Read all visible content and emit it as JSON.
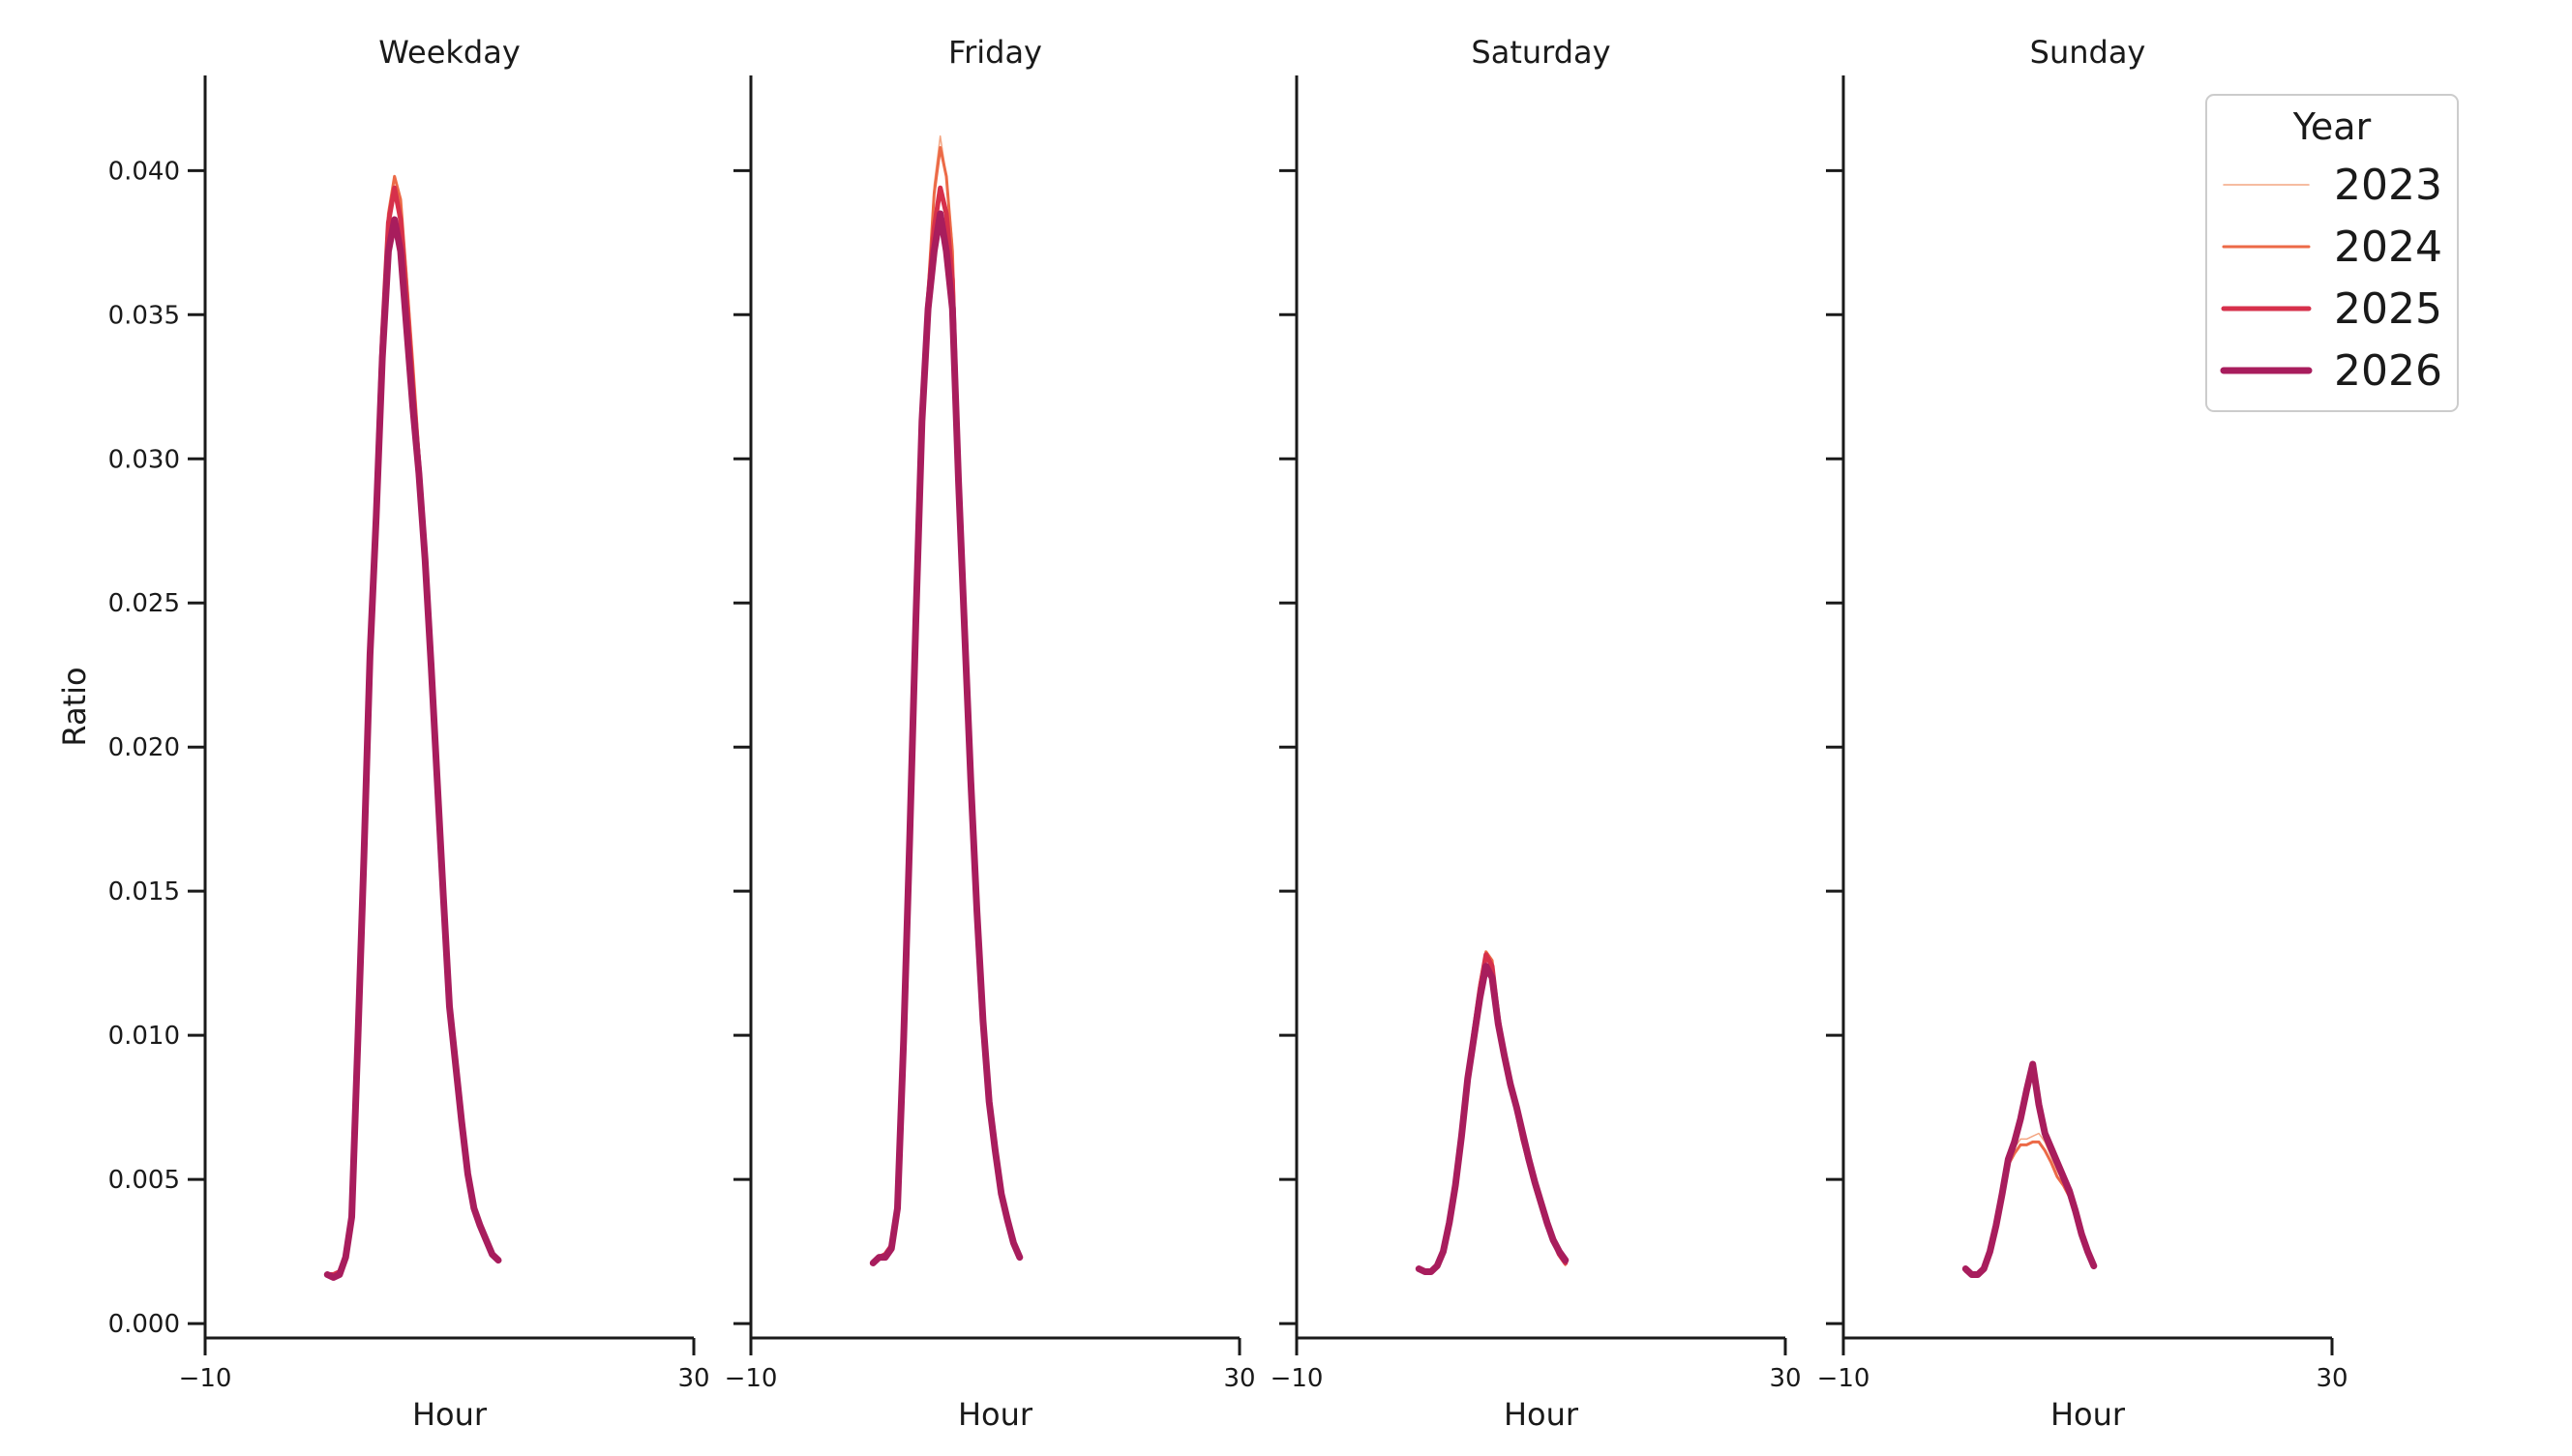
{
  "chart_data": {
    "type": "line",
    "ylabel": "Ratio",
    "xlabel": "Hour",
    "xlim": [
      -10,
      30
    ],
    "ylim": [
      -0.0005,
      0.0433
    ],
    "x_ticks": [
      {
        "value": -10,
        "label": "−10"
      },
      {
        "value": 30,
        "label": "30"
      }
    ],
    "y_ticks": [
      {
        "value": 0.0,
        "label": "0.000"
      },
      {
        "value": 0.005,
        "label": "0.005"
      },
      {
        "value": 0.01,
        "label": "0.010"
      },
      {
        "value": 0.015,
        "label": "0.015"
      },
      {
        "value": 0.02,
        "label": "0.020"
      },
      {
        "value": 0.025,
        "label": "0.025"
      },
      {
        "value": 0.03,
        "label": "0.030"
      },
      {
        "value": 0.035,
        "label": "0.035"
      },
      {
        "value": 0.04,
        "label": "0.040"
      }
    ],
    "grid": false,
    "legend": {
      "title": "Year",
      "placement": "top-right"
    },
    "series_styles": [
      {
        "name": "2023",
        "color": "#f4a582",
        "width": 1.5
      },
      {
        "name": "2024",
        "color": "#ec6a47",
        "width": 3
      },
      {
        "name": "2025",
        "color": "#d6304b",
        "width": 5
      },
      {
        "name": "2026",
        "color": "#a81d5d",
        "width": 7
      }
    ],
    "x": [
      0,
      0.5,
      1,
      1.5,
      2,
      2.5,
      3,
      3.5,
      4,
      4.5,
      5,
      5.5,
      6,
      6.5,
      7,
      7.5,
      8,
      8.5,
      9,
      9.5,
      10,
      10.5,
      11,
      11.5,
      12,
      12.5,
      13,
      13.5,
      14,
      14.5,
      15,
      15.5,
      16,
      16.5,
      17,
      17.5,
      18,
      18.5,
      19,
      19.5,
      20,
      20.5,
      21,
      21.5,
      22,
      22.5,
      23
    ],
    "panels": [
      {
        "title": "Weekday",
        "series": [
          {
            "name": "2023",
            "values": [
              0.0017,
              0.0017,
              0.0018,
              0.0023,
              0.0038,
              0.01,
              0.0165,
              0.0235,
              0.0285,
              0.0345,
              0.0385,
              0.0398,
              0.039,
              0.0365,
              0.0335,
              0.0305,
              0.0275,
              0.0235,
              0.0195,
              0.0155,
              0.0115,
              0.0095,
              0.0075,
              0.0055,
              0.0042,
              0.0035,
              0.003,
              0.0025,
              0.0023,
              null,
              null,
              null,
              null,
              null,
              null,
              null,
              null,
              null,
              null,
              null,
              null,
              null,
              null,
              null,
              null,
              null,
              null
            ]
          },
          {
            "name": "2024",
            "values": [
              0.0017,
              0.0017,
              0.0018,
              0.0023,
              0.0038,
              0.01,
              0.0165,
              0.0235,
              0.0285,
              0.0345,
              0.0385,
              0.0398,
              0.039,
              0.0362,
              0.0333,
              0.0302,
              0.0272,
              0.0232,
              0.0192,
              0.0152,
              0.0113,
              0.0093,
              0.0073,
              0.0054,
              0.0041,
              0.0034,
              0.0029,
              0.0024,
              0.0022,
              null,
              null,
              null,
              null,
              null,
              null,
              null,
              null,
              null,
              null,
              null,
              null,
              null,
              null,
              null,
              null,
              null,
              null
            ]
          },
          {
            "name": "2025",
            "values": [
              0.0017,
              0.0017,
              0.0018,
              0.0023,
              0.0038,
              0.01,
              0.0165,
              0.0235,
              0.0285,
              0.0342,
              0.0382,
              0.0394,
              0.0383,
              0.0355,
              0.0325,
              0.0298,
              0.0268,
              0.023,
              0.019,
              0.015,
              0.0112,
              0.0092,
              0.0072,
              0.0053,
              0.004,
              0.0034,
              0.0029,
              0.0024,
              0.0022,
              null,
              null,
              null,
              null,
              null,
              null,
              null,
              null,
              null,
              null,
              null,
              null,
              null,
              null,
              null,
              null,
              null,
              null
            ]
          },
          {
            "name": "2026",
            "values": [
              0.0017,
              0.0016,
              0.0017,
              0.0023,
              0.0037,
              0.0098,
              0.0162,
              0.0232,
              0.028,
              0.0335,
              0.0372,
              0.0383,
              0.0372,
              0.0345,
              0.0318,
              0.0295,
              0.0265,
              0.0228,
              0.0188,
              0.0148,
              0.011,
              0.009,
              0.007,
              0.0052,
              0.004,
              0.0034,
              0.0029,
              0.0024,
              0.0022,
              null,
              null,
              null,
              null,
              null,
              null,
              null,
              null,
              null,
              null,
              null,
              null,
              null,
              null,
              null,
              null,
              null,
              null
            ]
          }
        ]
      },
      {
        "title": "Friday",
        "series": [
          {
            "name": "2023",
            "values": [
              0.0021,
              0.0023,
              0.0024,
              0.0027,
              0.004,
              0.01,
              0.017,
              0.0245,
              0.0315,
              0.036,
              0.0395,
              0.0412,
              0.0398,
              0.0375,
              0.0305,
              0.025,
              0.0195,
              0.0148,
              0.0108,
              0.0078,
              0.006,
              0.0045,
              0.0036,
              0.0028,
              0.0023,
              null,
              null,
              null,
              null,
              null,
              null,
              null,
              null,
              null,
              null,
              null,
              null,
              null,
              null,
              null,
              null,
              null,
              null,
              null,
              null,
              null,
              null
            ]
          },
          {
            "name": "2024",
            "values": [
              0.0021,
              0.0023,
              0.0024,
              0.0027,
              0.004,
              0.01,
              0.017,
              0.0245,
              0.0315,
              0.0358,
              0.0392,
              0.0408,
              0.0398,
              0.0372,
              0.0302,
              0.0248,
              0.0193,
              0.0147,
              0.0107,
              0.0077,
              0.006,
              0.0045,
              0.0036,
              0.0028,
              0.0023,
              null,
              null,
              null,
              null,
              null,
              null,
              null,
              null,
              null,
              null,
              null,
              null,
              null,
              null,
              null,
              null,
              null,
              null,
              null,
              null,
              null,
              null
            ]
          },
          {
            "name": "2025",
            "values": [
              0.0021,
              0.0023,
              0.0024,
              0.0027,
              0.004,
              0.01,
              0.017,
              0.0245,
              0.0315,
              0.0355,
              0.038,
              0.0394,
              0.0385,
              0.0362,
              0.0295,
              0.0243,
              0.019,
              0.0145,
              0.0106,
              0.0077,
              0.006,
              0.0045,
              0.0036,
              0.0028,
              0.0023,
              null,
              null,
              null,
              null,
              null,
              null,
              null,
              null,
              null,
              null,
              null,
              null,
              null,
              null,
              null,
              null,
              null,
              null,
              null,
              null,
              null,
              null
            ]
          },
          {
            "name": "2026",
            "values": [
              0.0021,
              0.0023,
              0.0023,
              0.0026,
              0.004,
              0.0098,
              0.0168,
              0.0243,
              0.0313,
              0.0352,
              0.0372,
              0.0385,
              0.0372,
              0.0352,
              0.0292,
              0.024,
              0.0188,
              0.0143,
              0.0105,
              0.0077,
              0.006,
              0.0045,
              0.0036,
              0.0028,
              0.0023,
              null,
              null,
              null,
              null,
              null,
              null,
              null,
              null,
              null,
              null,
              null,
              null,
              null,
              null,
              null,
              null,
              null,
              null,
              null,
              null,
              null,
              null
            ]
          }
        ]
      },
      {
        "title": "Saturday",
        "series": [
          {
            "name": "2023",
            "values": [
              0.0019,
              0.0018,
              0.0018,
              0.002,
              0.0025,
              0.0035,
              0.0048,
              0.0065,
              0.0085,
              0.0101,
              0.0116,
              0.0127,
              0.0124,
              0.0106,
              0.0093,
              0.0082,
              0.0072,
              0.0063,
              0.0055,
              0.0047,
              0.004,
              0.0033,
              0.0028,
              0.0023,
              0.002,
              null,
              null,
              null,
              null,
              null,
              null,
              null,
              null,
              null,
              null,
              null,
              null,
              null,
              null,
              null,
              null,
              null,
              null,
              null,
              null,
              null,
              null
            ]
          },
          {
            "name": "2024",
            "values": [
              0.0019,
              0.0018,
              0.0018,
              0.002,
              0.0025,
              0.0035,
              0.0048,
              0.0065,
              0.0085,
              0.0102,
              0.0118,
              0.0129,
              0.0126,
              0.0107,
              0.0093,
              0.0082,
              0.0073,
              0.0063,
              0.0055,
              0.0047,
              0.004,
              0.0034,
              0.0028,
              0.0024,
              0.0021,
              null,
              null,
              null,
              null,
              null,
              null,
              null,
              null,
              null,
              null,
              null,
              null,
              null,
              null,
              null,
              null,
              null,
              null,
              null,
              null,
              null,
              null
            ]
          },
          {
            "name": "2025",
            "values": [
              0.0019,
              0.0018,
              0.0018,
              0.002,
              0.0025,
              0.0035,
              0.0048,
              0.0065,
              0.0085,
              0.0101,
              0.0116,
              0.0128,
              0.0124,
              0.0106,
              0.0093,
              0.0083,
              0.0074,
              0.0064,
              0.0056,
              0.0048,
              0.0041,
              0.0034,
              0.0029,
              0.0024,
              0.0021,
              null,
              null,
              null,
              null,
              null,
              null,
              null,
              null,
              null,
              null,
              null,
              null,
              null,
              null,
              null,
              null,
              null,
              null,
              null,
              null,
              null,
              null
            ]
          },
          {
            "name": "2026",
            "values": [
              0.0019,
              0.0018,
              0.0018,
              0.002,
              0.0025,
              0.0035,
              0.0048,
              0.0065,
              0.0085,
              0.0099,
              0.0113,
              0.0124,
              0.012,
              0.0104,
              0.0093,
              0.0083,
              0.0075,
              0.0066,
              0.0057,
              0.0049,
              0.0042,
              0.0035,
              0.0029,
              0.0025,
              0.0022,
              null,
              null,
              null,
              null,
              null,
              null,
              null,
              null,
              null,
              null,
              null,
              null,
              null,
              null,
              null,
              null,
              null,
              null,
              null,
              null,
              null,
              null
            ]
          }
        ]
      },
      {
        "title": "Sunday",
        "series": [
          {
            "name": "2023",
            "values": [
              0.0018,
              0.0017,
              0.0017,
              0.0019,
              0.0024,
              0.0033,
              0.0043,
              0.0055,
              0.0061,
              0.0064,
              0.0064,
              0.0065,
              0.0066,
              0.0063,
              0.0058,
              0.0053,
              0.0049,
              0.0045,
              0.0039,
              0.0032,
              0.0026,
              0.0021,
              null,
              null,
              null,
              null,
              null,
              null,
              null,
              null,
              null,
              null,
              null,
              null,
              null,
              null,
              null,
              null,
              null,
              null,
              null,
              null,
              null,
              null,
              null,
              null,
              null
            ]
          },
          {
            "name": "2024",
            "values": [
              0.0018,
              0.0017,
              0.0017,
              0.0019,
              0.0024,
              0.0033,
              0.0043,
              0.0055,
              0.0059,
              0.0062,
              0.0062,
              0.0063,
              0.0063,
              0.006,
              0.0056,
              0.0051,
              0.0048,
              0.0044,
              0.0038,
              0.0031,
              0.0025,
              0.002,
              null,
              null,
              null,
              null,
              null,
              null,
              null,
              null,
              null,
              null,
              null,
              null,
              null,
              null,
              null,
              null,
              null,
              null,
              null,
              null,
              null,
              null,
              null,
              null,
              null
            ]
          },
          {
            "name": "2025",
            "values": [
              0.0019,
              0.0017,
              0.0017,
              0.0019,
              0.0025,
              0.0034,
              0.0044,
              0.0056,
              0.0062,
              0.007,
              0.008,
              0.0089,
              0.0075,
              0.0065,
              0.006,
              0.0055,
              0.005,
              0.0045,
              0.0038,
              0.0031,
              0.0025,
              0.002,
              null,
              null,
              null,
              null,
              null,
              null,
              null,
              null,
              null,
              null,
              null,
              null,
              null,
              null,
              null,
              null,
              null,
              null,
              null,
              null,
              null,
              null,
              null,
              null,
              null
            ]
          },
          {
            "name": "2026",
            "values": [
              0.0019,
              0.0017,
              0.0017,
              0.0019,
              0.0025,
              0.0034,
              0.0045,
              0.0057,
              0.0063,
              0.0071,
              0.0081,
              0.009,
              0.0076,
              0.0066,
              0.0061,
              0.0056,
              0.0051,
              0.0046,
              0.0039,
              0.0031,
              0.0025,
              0.002,
              null,
              null,
              null,
              null,
              null,
              null,
              null,
              null,
              null,
              null,
              null,
              null,
              null,
              null,
              null,
              null,
              null,
              null,
              null,
              null,
              null,
              null,
              null,
              null,
              null
            ]
          }
        ]
      }
    ]
  }
}
